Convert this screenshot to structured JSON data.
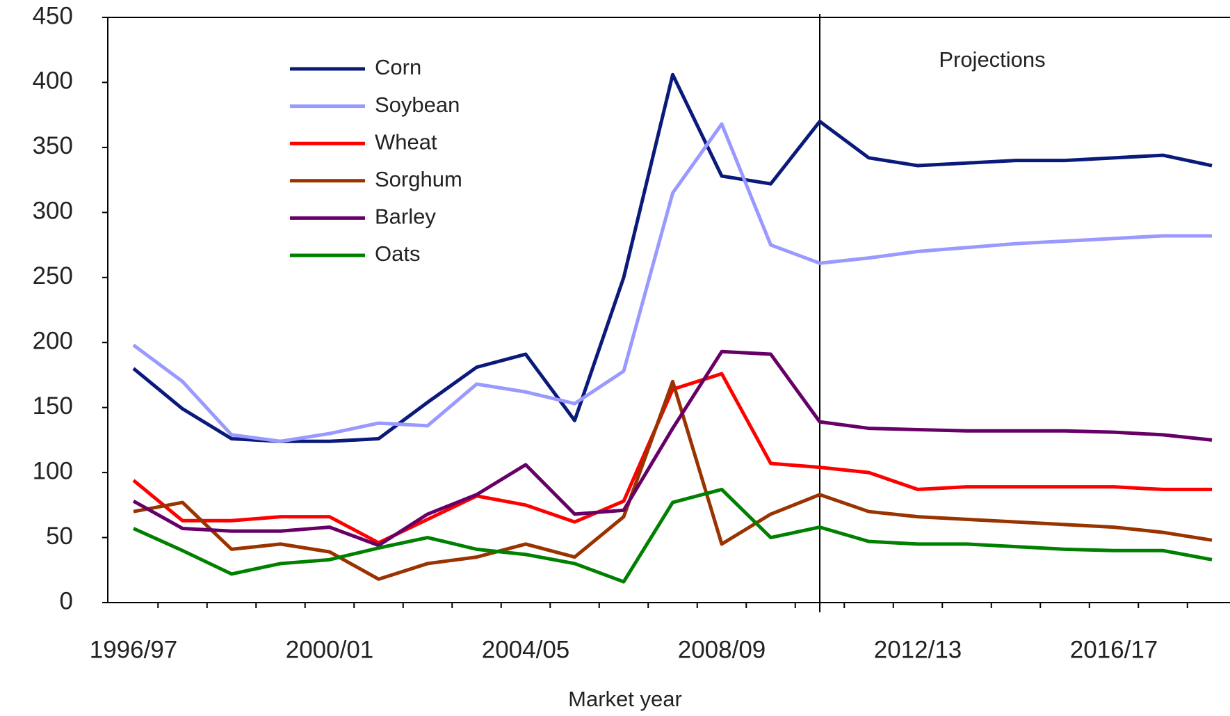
{
  "chart_data": {
    "type": "line",
    "x_label": "Market year",
    "annotation": "Projections",
    "categories": [
      "1996/97",
      null,
      null,
      null,
      "2000/01",
      null,
      null,
      null,
      "2004/05",
      null,
      null,
      null,
      "2008/09",
      null,
      null,
      null,
      "2012/13",
      null,
      null,
      null,
      "2016/17",
      null,
      null
    ],
    "ylim": [
      0,
      450
    ],
    "yticks": [
      0,
      50,
      100,
      150,
      200,
      250,
      300,
      350,
      400,
      450
    ],
    "legend": "upper left",
    "series": [
      {
        "name": "Corn",
        "color": "#0a1a7a",
        "values": [
          180,
          149,
          126,
          124,
          124,
          126,
          154,
          181,
          191,
          140,
          250,
          406,
          328,
          322,
          370,
          342,
          336,
          338,
          340,
          340,
          342,
          344,
          336
        ]
      },
      {
        "name": "Soybean",
        "color": "#9999ff",
        "values": [
          198,
          170,
          129,
          124,
          130,
          138,
          136,
          168,
          162,
          153,
          178,
          315,
          368,
          275,
          261,
          265,
          270,
          273,
          276,
          278,
          280,
          282,
          282
        ]
      },
      {
        "name": "Wheat",
        "color": "#ff0000",
        "values": [
          94,
          63,
          63,
          66,
          66,
          46,
          64,
          82,
          75,
          62,
          78,
          164,
          176,
          107,
          104,
          100,
          87,
          89,
          89,
          89,
          89,
          87,
          87
        ]
      },
      {
        "name": "Sorghum",
        "color": "#993300",
        "values": [
          70,
          77,
          41,
          45,
          39,
          18,
          30,
          35,
          45,
          35,
          66,
          170,
          45,
          68,
          83,
          70,
          66,
          64,
          62,
          60,
          58,
          54,
          48
        ]
      },
      {
        "name": "Barley",
        "color": "#660066",
        "values": [
          78,
          57,
          55,
          55,
          58,
          44,
          68,
          83,
          106,
          68,
          71,
          134,
          193,
          191,
          139,
          134,
          133,
          132,
          132,
          132,
          131,
          129,
          125
        ]
      },
      {
        "name": "Oats",
        "color": "#008000",
        "values": [
          57,
          40,
          22,
          30,
          33,
          42,
          50,
          41,
          37,
          30,
          16,
          77,
          87,
          50,
          58,
          47,
          45,
          45,
          43,
          41,
          40,
          40,
          33
        ]
      }
    ]
  }
}
